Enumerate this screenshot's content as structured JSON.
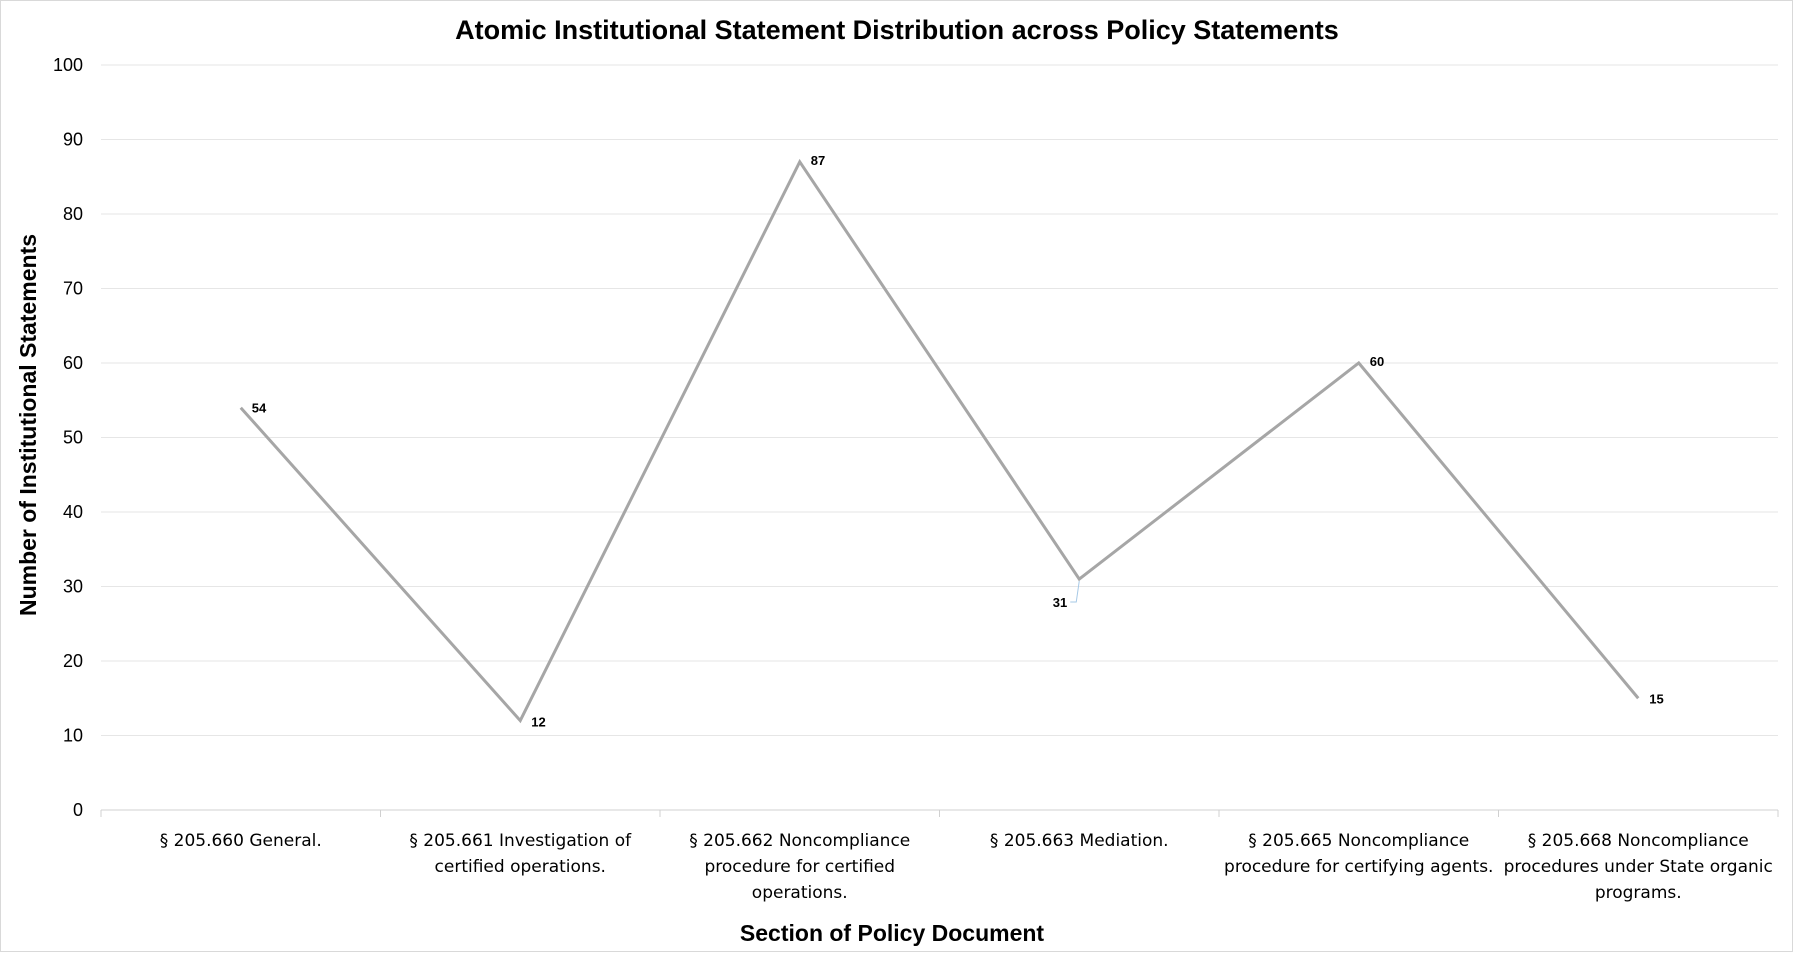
{
  "chart_data": {
    "type": "line",
    "title": "Atomic Institutional Statement Distribution across Policy Statements",
    "xlabel": "Section of Policy Document",
    "ylabel": "Number of Institutional Statements",
    "categories": [
      [
        "§ 205.660 General."
      ],
      [
        "§ 205.661 Investigation of",
        "certified operations."
      ],
      [
        "§ 205.662 Noncompliance",
        "procedure for certified",
        "operations."
      ],
      [
        "§ 205.663 Mediation."
      ],
      [
        "§ 205.665 Noncompliance",
        "procedure for certifying agents."
      ],
      [
        "§ 205.668 Noncompliance",
        "procedures under State organic",
        "programs."
      ]
    ],
    "values": [
      54,
      12,
      87,
      31,
      60,
      15
    ],
    "data_labels": [
      "54",
      "12",
      "87",
      "31",
      "60",
      "15"
    ],
    "ylim": [
      0,
      100
    ],
    "yticks": [
      0,
      10,
      20,
      30,
      40,
      50,
      60,
      70,
      80,
      90,
      100
    ],
    "grid": true,
    "legend": "none",
    "colors": {
      "line": "#a6a6a6",
      "grid": "#e6e6e6",
      "axis": "#d0d0d0"
    }
  }
}
